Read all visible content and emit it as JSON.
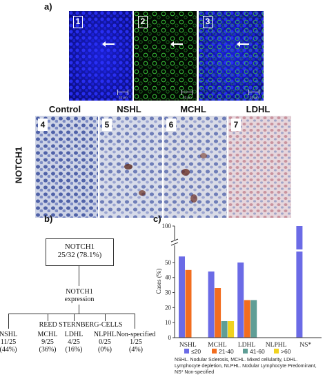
{
  "panel_labels": {
    "a": "a)",
    "b": "b)",
    "c": "c)"
  },
  "fluorescence": {
    "panels": [
      {
        "number": "1"
      },
      {
        "number": "2"
      },
      {
        "number": "3"
      }
    ],
    "scale_label": "20 μm"
  },
  "ihc": {
    "row_label": "NOTCH1",
    "columns": [
      {
        "title": "Control",
        "number": "4"
      },
      {
        "title": "NSHL",
        "number": "5"
      },
      {
        "title": "MCHL",
        "number": "6"
      },
      {
        "title": "LDHL",
        "number": "7"
      }
    ]
  },
  "flowchart": {
    "top_box_line1": "NOTCH1",
    "top_box_line2": "25/32 (78.1%)",
    "mid_line1": "NOTCH1",
    "mid_line2": "expression",
    "group_label": "REED STERNBERG-CELLS",
    "leaves": [
      {
        "name": "NSHL",
        "ratio": "11/25",
        "pct": "(44%)"
      },
      {
        "name": "MCHL",
        "ratio": "9/25",
        "pct": "(36%)"
      },
      {
        "name": "LDHL",
        "ratio": "4/25",
        "pct": "(16%)"
      },
      {
        "name": "NLPHL",
        "ratio": "0/25",
        "pct": "(0%)"
      },
      {
        "name": "Non-specified",
        "ratio": "1/25",
        "pct": "(4%)"
      }
    ]
  },
  "chart_data": {
    "type": "bar",
    "ylabel": "Cases (%)",
    "xlabel": "",
    "y_ticks": [
      "0",
      "10",
      "20",
      "30",
      "40",
      "50",
      "100"
    ],
    "ylim": [
      0,
      100
    ],
    "axis_break": "between 55 and 95",
    "categories": [
      "NSHL",
      "MCHL",
      "LDHL",
      "NLPHL",
      "NS*"
    ],
    "series": [
      {
        "name": "≤20",
        "color": "#6b6be6",
        "values": [
          54,
          44,
          50,
          0,
          100
        ]
      },
      {
        "name": "21-40",
        "color": "#f26d1f",
        "values": [
          45,
          33,
          25,
          0,
          0
        ]
      },
      {
        "name": "41-60",
        "color": "#5f9e96",
        "values": [
          0,
          11,
          25,
          0,
          0
        ]
      },
      {
        "name": ">60",
        "color": "#f0d21f",
        "values": [
          0,
          11,
          0,
          0,
          0
        ]
      }
    ],
    "legend_placement": "bottom",
    "footnote": "NSHL. Nodular Sclerosis, MCHL. Mixed cellularity, LDHL. Lymphocyte depletion, NLPHL. Nodular Lymphocyte Predominant, NS* Non-specified"
  }
}
